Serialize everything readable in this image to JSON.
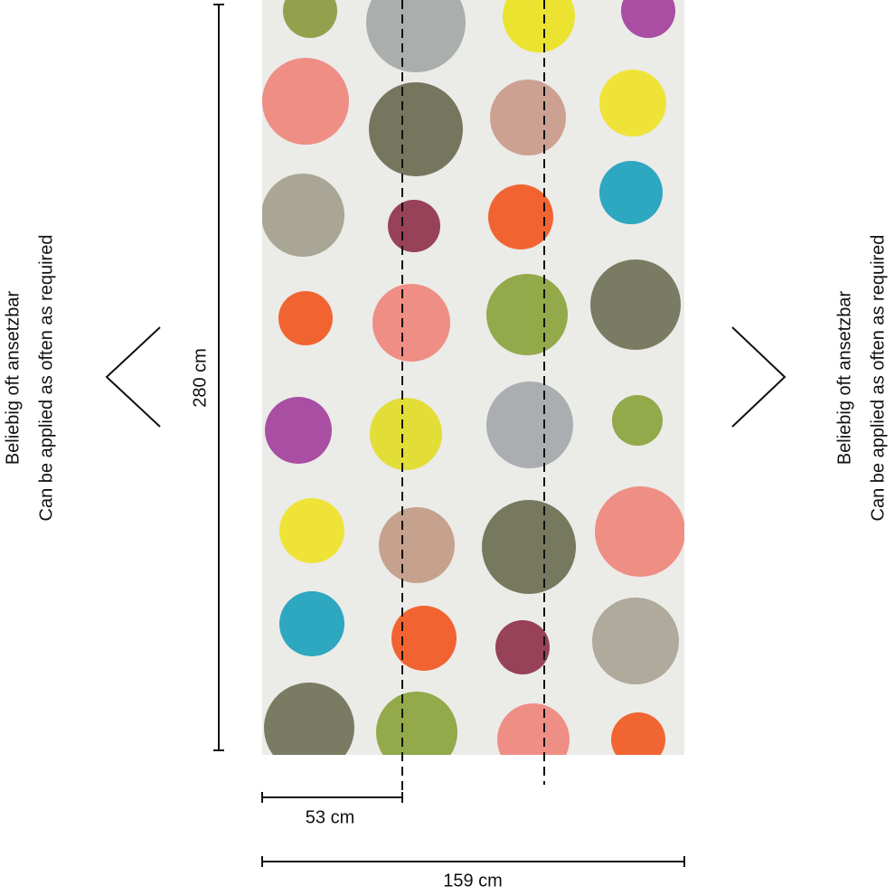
{
  "annotations": {
    "left": [
      "Beliebig oft ansetzbar",
      "Can be applied as often as required"
    ],
    "right": [
      "Beliebig oft ansetzbar",
      "Can be applied as often as required"
    ]
  },
  "dimensions": {
    "height": "280 cm",
    "panel_width": "53 cm",
    "total_width": "159 cm"
  }
}
